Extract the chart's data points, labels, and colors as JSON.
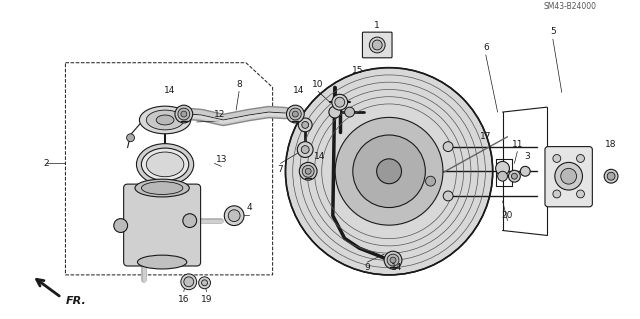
{
  "background_color": "#ffffff",
  "line_color": "#1a1a1a",
  "text_color": "#1a1a1a",
  "figsize": [
    6.4,
    3.19
  ],
  "dpi": 100,
  "note_sm": "SM43-B24000"
}
